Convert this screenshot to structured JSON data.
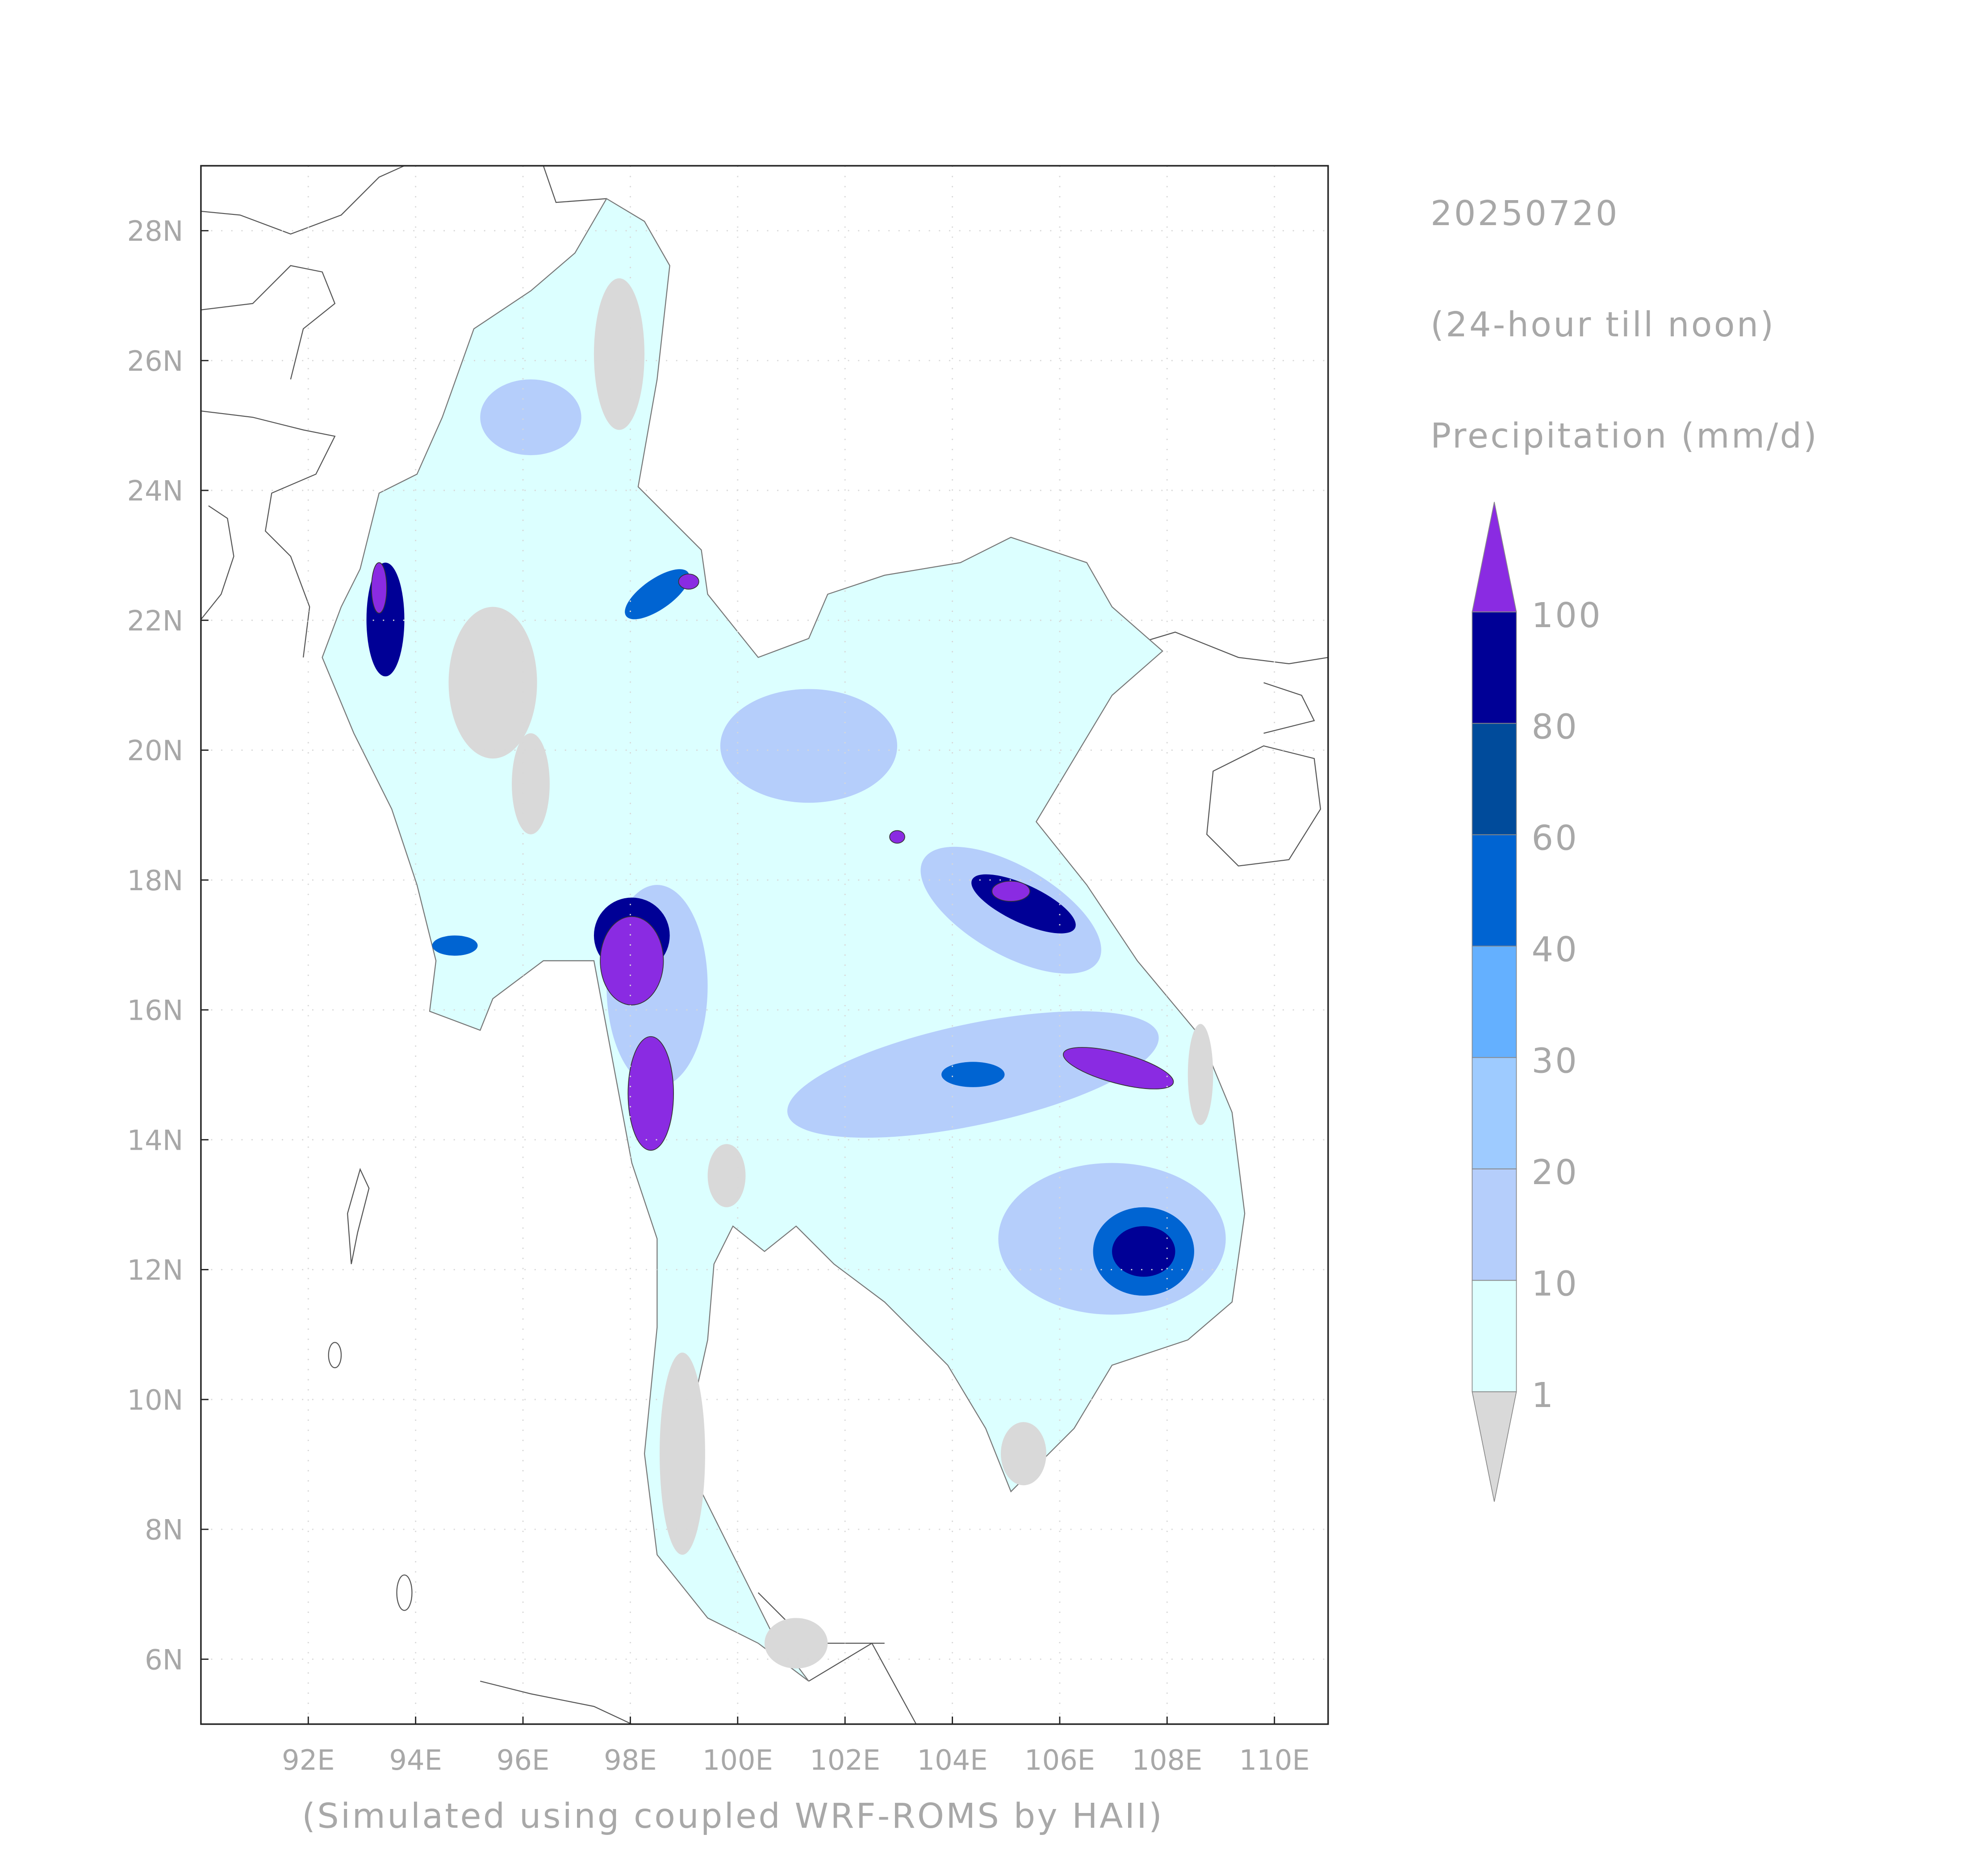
{
  "map": {
    "date": "20250720",
    "period": "(24-hour till noon)",
    "variable": "Precipitation (mm/d)",
    "footer": "(Simulated using coupled WRF-ROMS by HAII)",
    "xlim": [
      90,
      111
    ],
    "ylim": [
      5,
      29
    ],
    "xticks": [
      {
        "value": 92,
        "label": "92E"
      },
      {
        "value": 94,
        "label": "94E"
      },
      {
        "value": 96,
        "label": "96E"
      },
      {
        "value": 98,
        "label": "98E"
      },
      {
        "value": 100,
        "label": "100E"
      },
      {
        "value": 102,
        "label": "102E"
      },
      {
        "value": 104,
        "label": "104E"
      },
      {
        "value": 106,
        "label": "106E"
      },
      {
        "value": 108,
        "label": "108E"
      },
      {
        "value": 110,
        "label": "110E"
      }
    ],
    "yticks": [
      {
        "value": 6,
        "label": "6N"
      },
      {
        "value": 8,
        "label": "8N"
      },
      {
        "value": 10,
        "label": "10N"
      },
      {
        "value": 12,
        "label": "12N"
      },
      {
        "value": 14,
        "label": "14N"
      },
      {
        "value": 16,
        "label": "16N"
      },
      {
        "value": 18,
        "label": "18N"
      },
      {
        "value": 20,
        "label": "20N"
      },
      {
        "value": 22,
        "label": "22N"
      },
      {
        "value": 24,
        "label": "24N"
      },
      {
        "value": 26,
        "label": "26N"
      },
      {
        "value": 28,
        "label": "28N"
      }
    ],
    "colorbar": {
      "levels": [
        1,
        10,
        20,
        30,
        40,
        60,
        80,
        100
      ],
      "colors": [
        "#d9d9d9",
        "#dcffff",
        "#b5cefb",
        "#9ecbff",
        "#64b0ff",
        "#0064d2",
        "#004b9b",
        "#000096",
        "#8a2be2"
      ]
    }
  }
}
